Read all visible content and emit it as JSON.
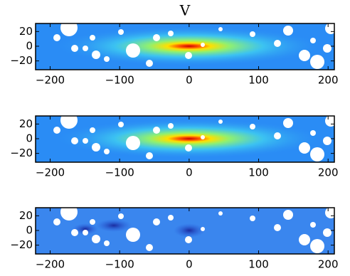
{
  "chart_data": [
    {
      "type": "image",
      "title": "V",
      "xlim": [
        -221,
        209
      ],
      "ylim": [
        -32,
        31
      ],
      "xticks": [
        {
          "value": -200,
          "label": "−200"
        },
        {
          "value": -100,
          "label": "−100"
        },
        0,
        100,
        200
      ],
      "yticks": [
        20,
        0,
        {
          "value": -20,
          "label": "−20"
        }
      ]
    },
    {
      "type": "image",
      "xlim": [
        -221,
        209
      ],
      "ylim": [
        -32,
        31
      ],
      "xticks": [
        {
          "value": -200,
          "label": "−200"
        },
        {
          "value": -100,
          "label": "−100"
        },
        0,
        100,
        200
      ],
      "yticks": [
        20,
        0,
        {
          "value": -20,
          "label": "−20"
        }
      ]
    },
    {
      "type": "image",
      "xlim": [
        -221,
        209
      ],
      "ylim": [
        -32,
        31
      ],
      "xticks": [
        {
          "value": -200,
          "label": "−200"
        },
        {
          "value": -100,
          "label": "−100"
        },
        0,
        100,
        200
      ],
      "yticks": [
        20,
        0,
        {
          "value": -20,
          "label": "−20"
        }
      ]
    }
  ]
}
